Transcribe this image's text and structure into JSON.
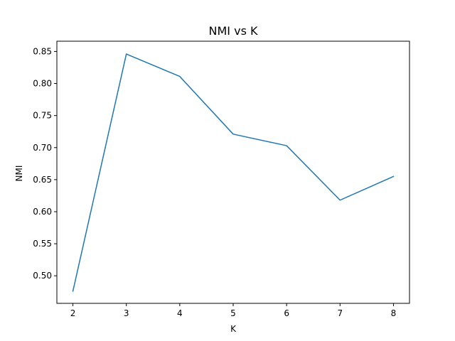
{
  "chart_data": {
    "type": "line",
    "title": "NMI vs K",
    "xlabel": "K",
    "ylabel": "NMI",
    "x": [
      2,
      3,
      4,
      5,
      6,
      7,
      8
    ],
    "series": [
      {
        "values": [
          0.476,
          0.846,
          0.811,
          0.721,
          0.703,
          0.618,
          0.655
        ],
        "color": "#1f77b4"
      }
    ],
    "xlim": [
      1.7,
      8.3
    ],
    "ylim": [
      0.457,
      0.866
    ],
    "xticks": [
      2,
      3,
      4,
      5,
      6,
      7,
      8
    ],
    "xtick_labels": [
      "2",
      "3",
      "4",
      "5",
      "6",
      "7",
      "8"
    ],
    "yticks": [
      0.5,
      0.55,
      0.6,
      0.65,
      0.7,
      0.75,
      0.8,
      0.85
    ],
    "ytick_labels": [
      "0.50",
      "0.55",
      "0.60",
      "0.65",
      "0.70",
      "0.75",
      "0.80",
      "0.85"
    ],
    "grid": false,
    "legend": "none"
  }
}
